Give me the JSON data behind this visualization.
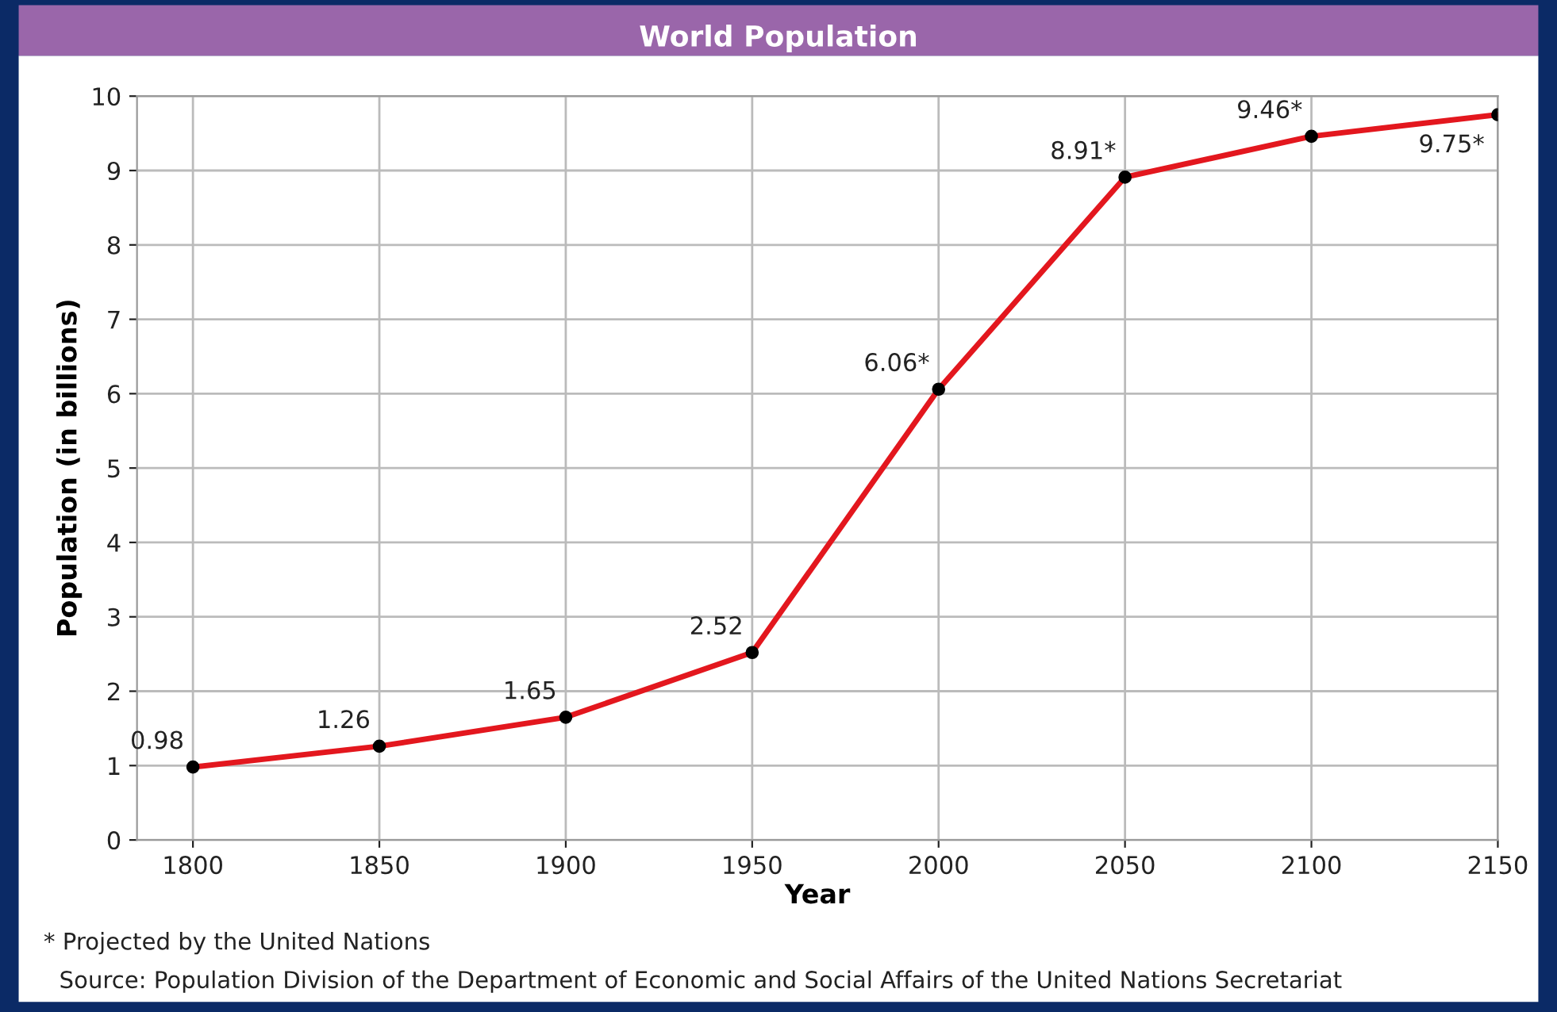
{
  "chart_data": {
    "type": "line",
    "title": "World Population",
    "xlabel": "Year",
    "ylabel": "Population (in billions)",
    "x": [
      1800,
      1850,
      1900,
      1950,
      2000,
      2050,
      2100,
      2150
    ],
    "series": [
      {
        "color": "#e3171e",
        "values": [
          0.98,
          1.26,
          1.65,
          2.52,
          6.06,
          8.91,
          9.46,
          9.75
        ],
        "value_labels": [
          "0.98",
          "1.26",
          "1.65",
          "2.52",
          "6.06*",
          "8.91*",
          "9.46*",
          "9.75*"
        ]
      }
    ],
    "xlim": [
      1785,
      2150
    ],
    "xticks": [
      1800,
      1850,
      1900,
      1950,
      2000,
      2050,
      2100,
      2150
    ],
    "ylim": [
      0,
      10
    ],
    "yticks": [
      0,
      1,
      2,
      3,
      4,
      5,
      6,
      7,
      8,
      9,
      10
    ],
    "grid": true,
    "marker": "circle",
    "line_style": "solid",
    "annotations": [
      "* Projected by the United Nations",
      "Source: Population Division of the Department of Economic and Social Affairs of the United Nations Secretariat"
    ]
  }
}
